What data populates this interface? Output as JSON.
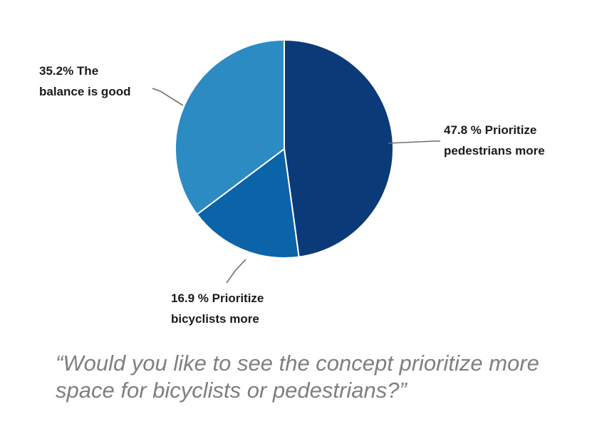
{
  "chart_data": {
    "type": "pie",
    "title": "",
    "slices": [
      {
        "name": "Prioritize pedestrians more",
        "value": 47.8,
        "color": "#0b3a78",
        "label_lines": [
          "47.8 % Prioritize",
          "pedestrians more"
        ]
      },
      {
        "name": "Prioritize bicyclists more",
        "value": 16.9,
        "color": "#0b64a8",
        "label_lines": [
          "16.9 % Prioritize",
          "bicyclists more"
        ]
      },
      {
        "name": "The balance is good",
        "value": 35.2,
        "color": "#2c8bc3",
        "label_lines": [
          "35.2% The",
          "balance is good"
        ]
      }
    ],
    "start_angle_deg": 0,
    "direction": "clockwise"
  },
  "caption": {
    "line1": "“Would you like to see the concept prioritize more",
    "line2": "space for bicyclists or pedestrians?”"
  }
}
